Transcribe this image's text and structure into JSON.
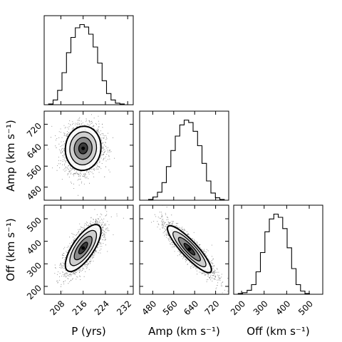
{
  "chart_data": {
    "type": "corner",
    "parameters": [
      {
        "key": "P",
        "label": "P (yrs)",
        "ticks": [
          208,
          216,
          224,
          232
        ],
        "range": [
          202,
          234
        ]
      },
      {
        "key": "Amp",
        "label": "Amp (km s⁻¹)",
        "ticks": [
          480,
          560,
          640,
          720
        ],
        "range": [
          430,
          770
        ]
      },
      {
        "key": "Off",
        "label": "Off (km s⁻¹)",
        "ticks": [
          200,
          300,
          400,
          500
        ],
        "range": [
          165,
          560
        ]
      }
    ],
    "histograms": [
      {
        "param": "P",
        "bin_edges": [
          202,
          203.6,
          205.2,
          206.8,
          208.4,
          210,
          211.6,
          213.2,
          214.8,
          216.4,
          218,
          219.6,
          221.2,
          222.8,
          224.4,
          226,
          227.6,
          229.2,
          230.8,
          232.4,
          234
        ],
        "counts": [
          0,
          1,
          6,
          18,
          40,
          65,
          84,
          96,
          100,
          97,
          88,
          72,
          52,
          30,
          14,
          6,
          2,
          1,
          0,
          0
        ]
      },
      {
        "param": "Amp",
        "bin_edges": [
          430,
          447,
          464,
          481,
          498,
          515,
          532,
          549,
          566,
          583,
          600,
          617,
          634,
          651,
          668,
          685,
          702,
          719,
          736,
          753,
          770
        ],
        "counts": [
          0,
          0,
          1,
          4,
          10,
          22,
          42,
          62,
          80,
          94,
          100,
          97,
          86,
          68,
          46,
          24,
          9,
          3,
          1,
          0
        ]
      },
      {
        "param": "Off",
        "bin_edges": [
          165,
          184.75,
          204.5,
          224.25,
          244,
          263.75,
          283.5,
          303.25,
          323,
          342.75,
          362.5,
          382.25,
          402,
          421.75,
          441.5,
          461.25,
          481,
          500.75,
          520.5,
          540.25,
          560
        ],
        "counts": [
          0,
          1,
          2,
          5,
          12,
          28,
          52,
          78,
          94,
          100,
          96,
          82,
          58,
          32,
          12,
          4,
          1,
          0,
          0,
          0
        ]
      }
    ],
    "pair_panels": [
      {
        "x": "P",
        "y": "Amp",
        "center": [
          216,
          628
        ],
        "sd": [
          3.2,
          42
        ],
        "corr": 0.05,
        "contour_sigmas": [
          0.5,
          1,
          1.5,
          2
        ]
      },
      {
        "x": "P",
        "y": "Off",
        "center": [
          216,
          370
        ],
        "sd": [
          3.2,
          52
        ],
        "corr": 0.72,
        "contour_sigmas": [
          0.5,
          1,
          1.5,
          2
        ]
      },
      {
        "x": "Amp",
        "y": "Off",
        "center": [
          620,
          365
        ],
        "sd": [
          42,
          52
        ],
        "corr": -0.88,
        "contour_sigmas": [
          0.5,
          1,
          1.5,
          2
        ]
      }
    ],
    "colors": {
      "contour": "#000000",
      "fill_dark": "#3a3a3a",
      "fill_mid": "#8a8a8a",
      "fill_light": "#cfcfcf",
      "scatter": "#1a1a1a"
    }
  }
}
